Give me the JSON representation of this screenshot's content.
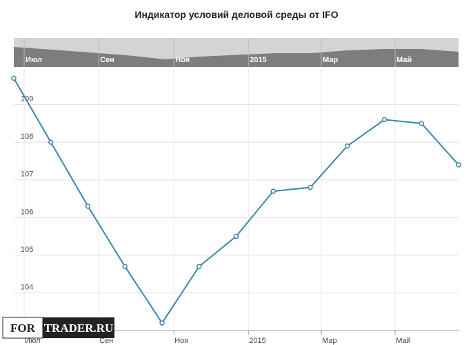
{
  "chart_data": {
    "type": "line",
    "title": "Индикатор условий деловой среды от IFO",
    "x": [
      0,
      1,
      2,
      3,
      4,
      5,
      6,
      7,
      8,
      9,
      10,
      11,
      12
    ],
    "series": [
      {
        "name": "IFO",
        "color": "#3a86a8",
        "values": [
          109.7,
          108.0,
          106.3,
          104.7,
          103.2,
          104.7,
          105.5,
          106.7,
          106.8,
          107.9,
          108.6,
          108.5,
          107.4
        ]
      }
    ],
    "xlim": [
      0,
      12
    ],
    "xticks": [
      {
        "value": 0.28,
        "label": "Июл"
      },
      {
        "value": 2.29,
        "label": "Сен"
      },
      {
        "value": 4.32,
        "label": "Ноя"
      },
      {
        "value": 6.33,
        "label": "2015"
      },
      {
        "value": 8.3,
        "label": "Мар"
      },
      {
        "value": 10.29,
        "label": "Май"
      }
    ],
    "ylim": [
      103,
      110
    ],
    "yticks": [
      104,
      105,
      106,
      107,
      108,
      109
    ],
    "grid": true,
    "watermark": [
      "FOR",
      "TRADER.RU"
    ]
  }
}
